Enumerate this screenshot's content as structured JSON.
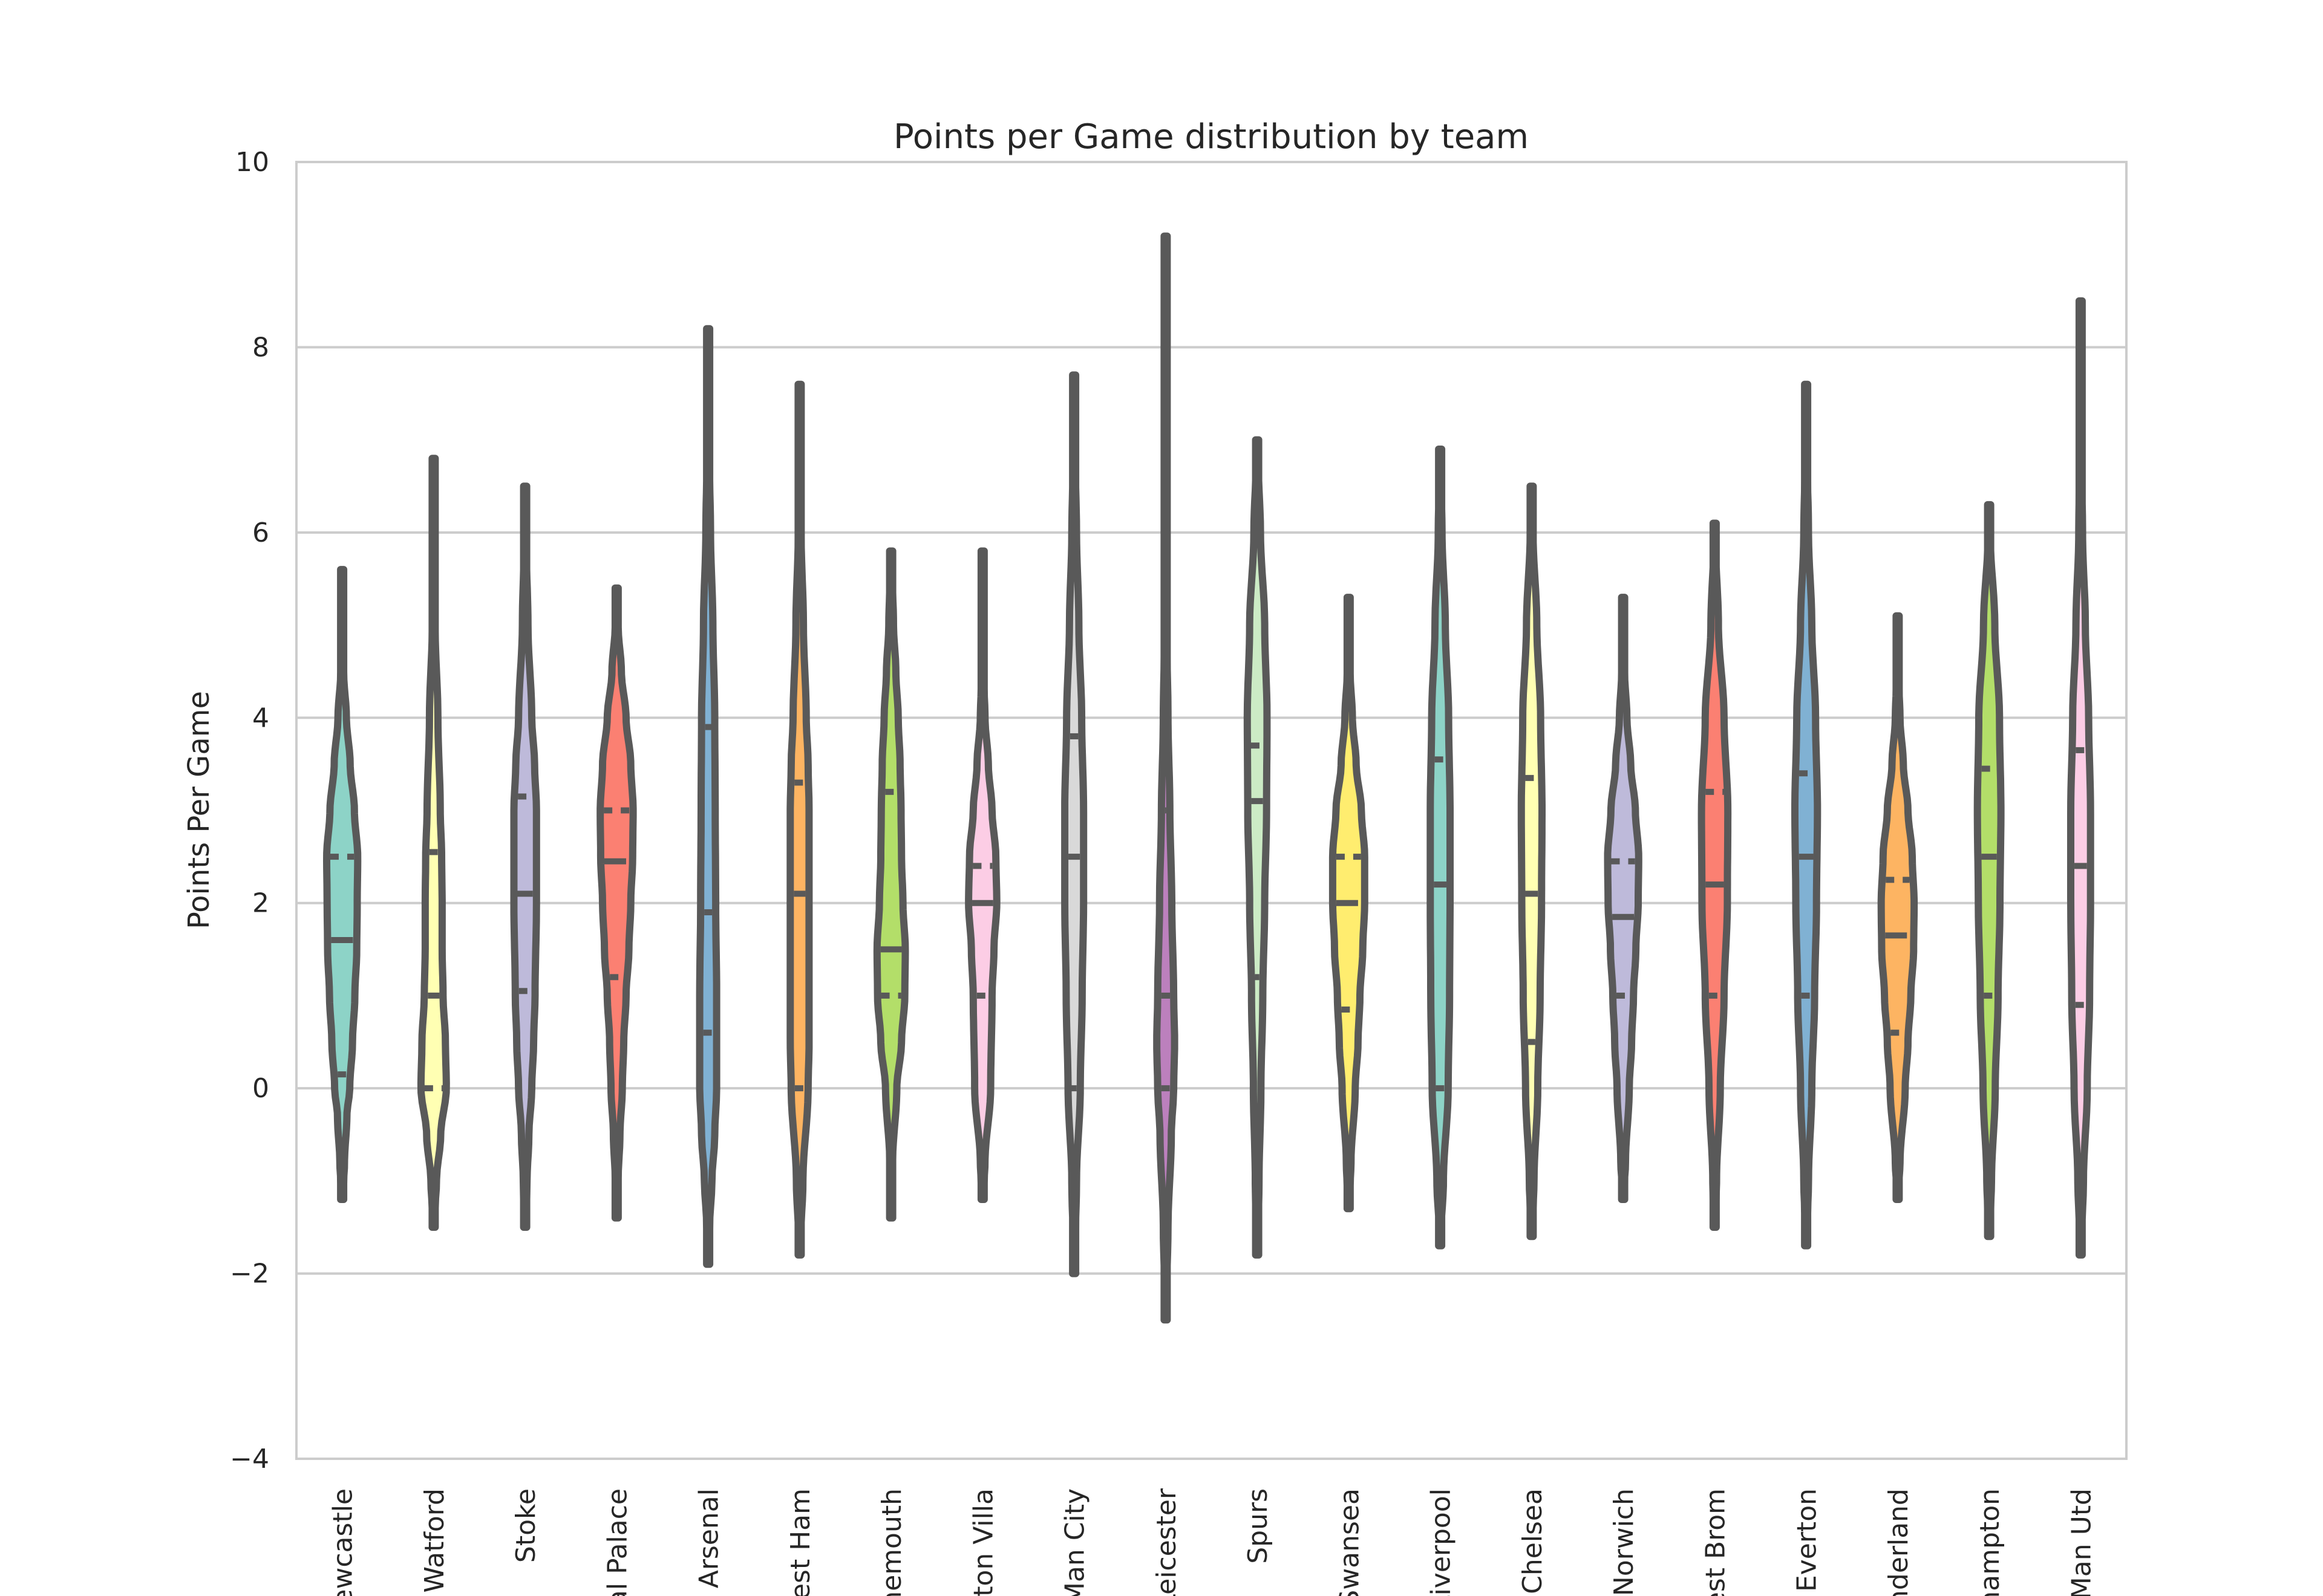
{
  "chart_data": {
    "type": "violin",
    "title": "Points per Game distribution by team",
    "xlabel": "",
    "ylabel": "Points Per Game",
    "ylim": [
      -4,
      10
    ],
    "yticks": [
      -4,
      -2,
      0,
      2,
      4,
      6,
      8,
      10
    ],
    "ytick_labels": [
      "−4",
      "−2",
      "0",
      "2",
      "4",
      "6",
      "8",
      "10"
    ],
    "grid": "horizontal",
    "inner": "quartile",
    "categories": [
      "Newcastle",
      "Watford",
      "Stoke",
      "Crystal Palace",
      "Arsenal",
      "West Ham",
      "Bournemouth",
      "Aston Villa",
      "Man City",
      "Leicester",
      "Spurs",
      "Swansea",
      "Liverpool",
      "Chelsea",
      "Norwich",
      "West Brom",
      "Everton",
      "Sunderland",
      "Southampton",
      "Man Utd"
    ],
    "tick_labels_visible": [
      "Newcastle",
      "Watford",
      "Stoke",
      "tal Palace",
      "Arsenal",
      "West Ham",
      "rnemouth",
      "Aston Villa",
      "Man City",
      "Leicester",
      "Spurs",
      "Swansea",
      "Liverpool",
      "Chelsea",
      "Norwich",
      "West Brom",
      "Everton",
      "underland",
      "thampton",
      "Man Utd"
    ],
    "colors": [
      "#8dd3c7",
      "#ffffb3",
      "#bebada",
      "#fb8072",
      "#80b1d3",
      "#fdb462",
      "#b3de69",
      "#fccde5",
      "#d9d9d9",
      "#bc80bd",
      "#ccebc5",
      "#ffed6f",
      "#8dd3c7",
      "#ffffb3",
      "#bebada",
      "#fb8072",
      "#80b1d3",
      "#fdb462",
      "#b3de69",
      "#fccde5"
    ],
    "series": [
      {
        "category": "Newcastle",
        "min": -1.2,
        "max": 5.6,
        "q1": 0.15,
        "median": 1.6,
        "q3": 2.5,
        "profile": [
          [
            -1.2,
            0
          ],
          [
            -0.8,
            0.05
          ],
          [
            -0.3,
            0.1
          ],
          [
            0,
            0.16
          ],
          [
            0.5,
            0.22
          ],
          [
            1,
            0.27
          ],
          [
            1.5,
            0.31
          ],
          [
            2,
            0.32
          ],
          [
            2.5,
            0.33
          ],
          [
            3,
            0.26
          ],
          [
            3.5,
            0.17
          ],
          [
            4,
            0.09
          ],
          [
            4.5,
            0.03
          ],
          [
            5,
            0.015
          ],
          [
            5.6,
            0
          ]
        ]
      },
      {
        "category": "Watford",
        "min": -1.5,
        "max": 6.8,
        "q1": 0,
        "median": 1.0,
        "q3": 2.55,
        "profile": [
          [
            -1.5,
            0
          ],
          [
            -1,
            0.06
          ],
          [
            -0.5,
            0.15
          ],
          [
            0,
            0.27
          ],
          [
            0.5,
            0.25
          ],
          [
            1,
            0.2
          ],
          [
            1.5,
            0.18
          ],
          [
            2,
            0.18
          ],
          [
            2.5,
            0.17
          ],
          [
            3,
            0.14
          ],
          [
            4,
            0.09
          ],
          [
            5,
            0.03
          ],
          [
            6,
            0.01
          ],
          [
            6.8,
            0
          ]
        ]
      },
      {
        "category": "Stoke",
        "min": -1.5,
        "max": 6.5,
        "q1": 1.05,
        "median": 2.1,
        "q3": 3.15,
        "profile": [
          [
            -1.5,
            0
          ],
          [
            -1,
            0.04
          ],
          [
            -0.5,
            0.08
          ],
          [
            0,
            0.14
          ],
          [
            0.5,
            0.18
          ],
          [
            1,
            0.21
          ],
          [
            2,
            0.24
          ],
          [
            3,
            0.24
          ],
          [
            3.5,
            0.2
          ],
          [
            4,
            0.14
          ],
          [
            5,
            0.06
          ],
          [
            6,
            0.015
          ],
          [
            6.5,
            0
          ]
        ]
      },
      {
        "category": "Crystal Palace",
        "min": -1.4,
        "max": 5.4,
        "q1": 1.2,
        "median": 2.45,
        "q3": 3.0,
        "profile": [
          [
            -1.4,
            0
          ],
          [
            -1,
            0.03
          ],
          [
            -0.5,
            0.07
          ],
          [
            0,
            0.12
          ],
          [
            0.5,
            0.15
          ],
          [
            1,
            0.2
          ],
          [
            1.5,
            0.26
          ],
          [
            2,
            0.3
          ],
          [
            2.5,
            0.34
          ],
          [
            3,
            0.35
          ],
          [
            3.5,
            0.3
          ],
          [
            4,
            0.2
          ],
          [
            4.5,
            0.1
          ],
          [
            5,
            0.03
          ],
          [
            5.4,
            0
          ]
        ]
      },
      {
        "category": "Arsenal",
        "min": -1.9,
        "max": 8.2,
        "q1": 0.6,
        "median": 1.9,
        "q3": 3.9,
        "profile": [
          [
            -1.9,
            0
          ],
          [
            -1.5,
            0.03
          ],
          [
            -1,
            0.08
          ],
          [
            -0.5,
            0.14
          ],
          [
            0,
            0.18
          ],
          [
            1,
            0.18
          ],
          [
            2,
            0.16
          ],
          [
            3,
            0.15
          ],
          [
            4,
            0.14
          ],
          [
            5,
            0.1
          ],
          [
            6,
            0.05
          ],
          [
            7,
            0.015
          ],
          [
            8.2,
            0
          ]
        ]
      },
      {
        "category": "West Ham",
        "min": -1.8,
        "max": 7.6,
        "q1": 0,
        "median": 2.1,
        "q3": 3.3,
        "profile": [
          [
            -1.8,
            0
          ],
          [
            -1,
            0.07
          ],
          [
            0,
            0.18
          ],
          [
            0.5,
            0.2
          ],
          [
            1,
            0.2
          ],
          [
            2,
            0.2
          ],
          [
            3,
            0.2
          ],
          [
            3.5,
            0.18
          ],
          [
            4,
            0.14
          ],
          [
            5,
            0.08
          ],
          [
            6,
            0.03
          ],
          [
            7,
            0.01
          ],
          [
            7.6,
            0
          ]
        ]
      },
      {
        "category": "Bournemouth",
        "min": -1.4,
        "max": 5.8,
        "q1": 1.0,
        "median": 1.5,
        "q3": 3.2,
        "profile": [
          [
            -1.4,
            0
          ],
          [
            -0.8,
            0.03
          ],
          [
            0,
            0.12
          ],
          [
            0.5,
            0.22
          ],
          [
            1,
            0.29
          ],
          [
            1.5,
            0.3
          ],
          [
            2,
            0.25
          ],
          [
            2.5,
            0.22
          ],
          [
            3,
            0.21
          ],
          [
            3.5,
            0.19
          ],
          [
            4,
            0.15
          ],
          [
            4.5,
            0.1
          ],
          [
            5,
            0.05
          ],
          [
            5.8,
            0
          ]
        ]
      },
      {
        "category": "Aston Villa",
        "min": -1.2,
        "max": 5.8,
        "q1": 1.0,
        "median": 2.0,
        "q3": 2.4,
        "profile": [
          [
            -1.2,
            0
          ],
          [
            -0.8,
            0.05
          ],
          [
            0,
            0.17
          ],
          [
            1,
            0.2
          ],
          [
            1.5,
            0.24
          ],
          [
            2,
            0.3
          ],
          [
            2.5,
            0.28
          ],
          [
            3,
            0.2
          ],
          [
            3.5,
            0.12
          ],
          [
            4,
            0.05
          ],
          [
            4.5,
            0.015
          ],
          [
            5.8,
            0
          ]
        ]
      },
      {
        "category": "Man City",
        "min": -2.0,
        "max": 7.7,
        "q1": 0,
        "median": 2.5,
        "q3": 3.8,
        "profile": [
          [
            -2,
            0
          ],
          [
            -1,
            0.05
          ],
          [
            0,
            0.13
          ],
          [
            1,
            0.17
          ],
          [
            2,
            0.2
          ],
          [
            3,
            0.2
          ],
          [
            4,
            0.16
          ],
          [
            5,
            0.1
          ],
          [
            6,
            0.05
          ],
          [
            7,
            0.01
          ],
          [
            7.7,
            0
          ]
        ]
      },
      {
        "category": "Leicester",
        "min": -2.5,
        "max": 9.2,
        "q1": 0,
        "median": 1.0,
        "q3": 3.0,
        "profile": [
          [
            -2.5,
            0
          ],
          [
            -1.5,
            0.05
          ],
          [
            -0.5,
            0.12
          ],
          [
            0,
            0.17
          ],
          [
            0.5,
            0.19
          ],
          [
            1,
            0.17
          ],
          [
            2,
            0.13
          ],
          [
            3,
            0.09
          ],
          [
            4,
            0.05
          ],
          [
            5,
            0.02
          ],
          [
            6,
            0.008
          ],
          [
            9.2,
            0
          ]
        ]
      },
      {
        "category": "Spurs",
        "min": -1.8,
        "max": 7.0,
        "q1": 1.2,
        "median": 3.1,
        "q3": 3.7,
        "profile": [
          [
            -1.8,
            0
          ],
          [
            -1,
            0.04
          ],
          [
            0,
            0.08
          ],
          [
            1,
            0.12
          ],
          [
            2,
            0.16
          ],
          [
            3,
            0.2
          ],
          [
            4,
            0.21
          ],
          [
            5,
            0.16
          ],
          [
            6,
            0.07
          ],
          [
            7,
            0
          ]
        ]
      },
      {
        "category": "Swansea",
        "min": -1.3,
        "max": 5.3,
        "q1": 0.85,
        "median": 2.0,
        "q3": 2.5,
        "profile": [
          [
            -1.3,
            0
          ],
          [
            -0.8,
            0.05
          ],
          [
            0,
            0.14
          ],
          [
            0.5,
            0.2
          ],
          [
            1,
            0.24
          ],
          [
            1.5,
            0.3
          ],
          [
            2,
            0.34
          ],
          [
            2.5,
            0.34
          ],
          [
            3,
            0.27
          ],
          [
            3.5,
            0.16
          ],
          [
            4,
            0.08
          ],
          [
            4.5,
            0.03
          ],
          [
            5.3,
            0
          ]
        ]
      },
      {
        "category": "Liverpool",
        "min": -1.7,
        "max": 6.9,
        "q1": 0,
        "median": 2.2,
        "q3": 3.55,
        "profile": [
          [
            -1.7,
            0
          ],
          [
            -1,
            0.07
          ],
          [
            0,
            0.17
          ],
          [
            1,
            0.2
          ],
          [
            2,
            0.21
          ],
          [
            3,
            0.21
          ],
          [
            4,
            0.18
          ],
          [
            5,
            0.11
          ],
          [
            6,
            0.04
          ],
          [
            6.9,
            0
          ]
        ]
      },
      {
        "category": "Chelsea",
        "min": -1.6,
        "max": 6.5,
        "q1": 0.5,
        "median": 2.1,
        "q3": 3.35,
        "profile": [
          [
            -1.6,
            0
          ],
          [
            -1,
            0.05
          ],
          [
            0,
            0.13
          ],
          [
            1,
            0.18
          ],
          [
            2,
            0.21
          ],
          [
            3,
            0.22
          ],
          [
            4,
            0.19
          ],
          [
            5,
            0.11
          ],
          [
            6,
            0.03
          ],
          [
            6.5,
            0
          ]
        ]
      },
      {
        "category": "Norwich",
        "min": -1.2,
        "max": 5.3,
        "q1": 1.0,
        "median": 1.85,
        "q3": 2.45,
        "profile": [
          [
            -1.2,
            0
          ],
          [
            -0.8,
            0.05
          ],
          [
            0,
            0.13
          ],
          [
            0.5,
            0.18
          ],
          [
            1,
            0.22
          ],
          [
            1.5,
            0.27
          ],
          [
            2,
            0.32
          ],
          [
            2.5,
            0.33
          ],
          [
            3,
            0.26
          ],
          [
            3.5,
            0.16
          ],
          [
            4,
            0.08
          ],
          [
            4.5,
            0.03
          ],
          [
            5.3,
            0
          ]
        ]
      },
      {
        "category": "West Brom",
        "min": -1.5,
        "max": 6.1,
        "q1": 1.0,
        "median": 2.2,
        "q3": 3.2,
        "profile": [
          [
            -1.5,
            0
          ],
          [
            -1,
            0.04
          ],
          [
            0,
            0.12
          ],
          [
            1,
            0.2
          ],
          [
            2,
            0.27
          ],
          [
            3,
            0.28
          ],
          [
            4,
            0.2
          ],
          [
            5,
            0.08
          ],
          [
            6,
            0.01
          ],
          [
            6.1,
            0
          ]
        ]
      },
      {
        "category": "Everton",
        "min": -1.7,
        "max": 7.6,
        "q1": 1.0,
        "median": 2.5,
        "q3": 3.4,
        "profile": [
          [
            -1.7,
            0
          ],
          [
            -1,
            0.05
          ],
          [
            0,
            0.12
          ],
          [
            1,
            0.18
          ],
          [
            2,
            0.22
          ],
          [
            3,
            0.24
          ],
          [
            4,
            0.2
          ],
          [
            5,
            0.12
          ],
          [
            6,
            0.05
          ],
          [
            7,
            0.01
          ],
          [
            7.6,
            0
          ]
        ]
      },
      {
        "category": "Sunderland",
        "min": -1.2,
        "max": 5.1,
        "q1": 0.6,
        "median": 1.65,
        "q3": 2.25,
        "profile": [
          [
            -1.2,
            0
          ],
          [
            -0.8,
            0.05
          ],
          [
            0,
            0.16
          ],
          [
            0.5,
            0.22
          ],
          [
            1,
            0.28
          ],
          [
            1.5,
            0.34
          ],
          [
            2,
            0.35
          ],
          [
            2.5,
            0.31
          ],
          [
            3,
            0.22
          ],
          [
            3.5,
            0.12
          ],
          [
            4,
            0.05
          ],
          [
            4.5,
            0.015
          ],
          [
            5.1,
            0
          ]
        ]
      },
      {
        "category": "Southampton",
        "min": -1.6,
        "max": 6.3,
        "q1": 1.0,
        "median": 2.5,
        "q3": 3.45,
        "profile": [
          [
            -1.6,
            0
          ],
          [
            -1,
            0.05
          ],
          [
            0,
            0.13
          ],
          [
            1,
            0.19
          ],
          [
            2,
            0.23
          ],
          [
            3,
            0.25
          ],
          [
            4,
            0.22
          ],
          [
            5,
            0.12
          ],
          [
            6,
            0.02
          ],
          [
            6.3,
            0
          ]
        ]
      },
      {
        "category": "Man Utd",
        "min": -1.8,
        "max": 8.5,
        "q1": 0.9,
        "median": 2.4,
        "q3": 3.65,
        "profile": [
          [
            -1.8,
            0
          ],
          [
            -1,
            0.06
          ],
          [
            0,
            0.14
          ],
          [
            1,
            0.19
          ],
          [
            2,
            0.21
          ],
          [
            3,
            0.21
          ],
          [
            4,
            0.17
          ],
          [
            5,
            0.1
          ],
          [
            6,
            0.04
          ],
          [
            7,
            0.01
          ],
          [
            8.5,
            0
          ]
        ]
      }
    ]
  }
}
